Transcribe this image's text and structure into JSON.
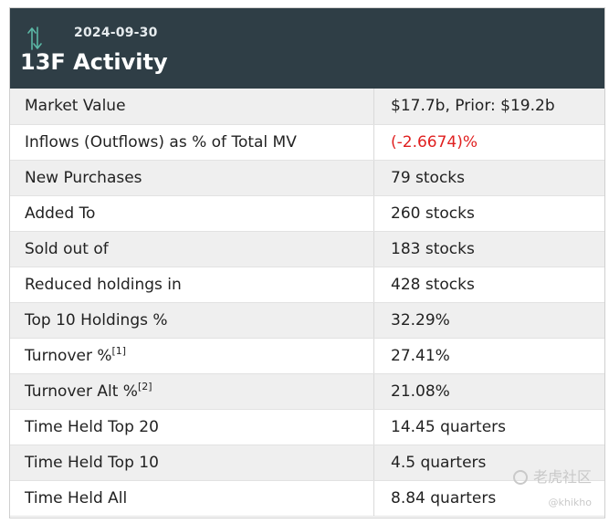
{
  "header": {
    "date": "2024-09-30",
    "title": "13F Activity",
    "icon": "up-down-arrows-icon",
    "accent": "#5bb8a6",
    "background": "#2f3e46"
  },
  "rows": [
    {
      "label": "Market Value",
      "sup": "",
      "value": "$17.7b, Prior: $19.2b",
      "negative": false
    },
    {
      "label": "Inflows (Outflows) as % of Total MV",
      "sup": "",
      "value": "(-2.6674)%",
      "negative": true
    },
    {
      "label": "New Purchases",
      "sup": "",
      "value": "79 stocks",
      "negative": false
    },
    {
      "label": "Added To",
      "sup": "",
      "value": "260 stocks",
      "negative": false
    },
    {
      "label": "Sold out of",
      "sup": "",
      "value": "183 stocks",
      "negative": false
    },
    {
      "label": "Reduced holdings in",
      "sup": "",
      "value": "428 stocks",
      "negative": false
    },
    {
      "label": "Top 10 Holdings %",
      "sup": "",
      "value": "32.29%",
      "negative": false
    },
    {
      "label": "Turnover %",
      "sup": "[1]",
      "value": "27.41%",
      "negative": false
    },
    {
      "label": "Turnover Alt %",
      "sup": "[2]",
      "value": "21.08%",
      "negative": false
    },
    {
      "label": "Time Held Top 20",
      "sup": "",
      "value": "14.45 quarters",
      "negative": false
    },
    {
      "label": "Time Held Top 10",
      "sup": "",
      "value": "4.5 quarters",
      "negative": false
    },
    {
      "label": "Time Held All",
      "sup": "",
      "value": "8.84 quarters",
      "negative": false
    }
  ],
  "colors": {
    "negative": "#e02020",
    "row_shaded": "#efefef"
  },
  "watermark": {
    "brand": "老虎社区",
    "handle": "@khikho"
  }
}
